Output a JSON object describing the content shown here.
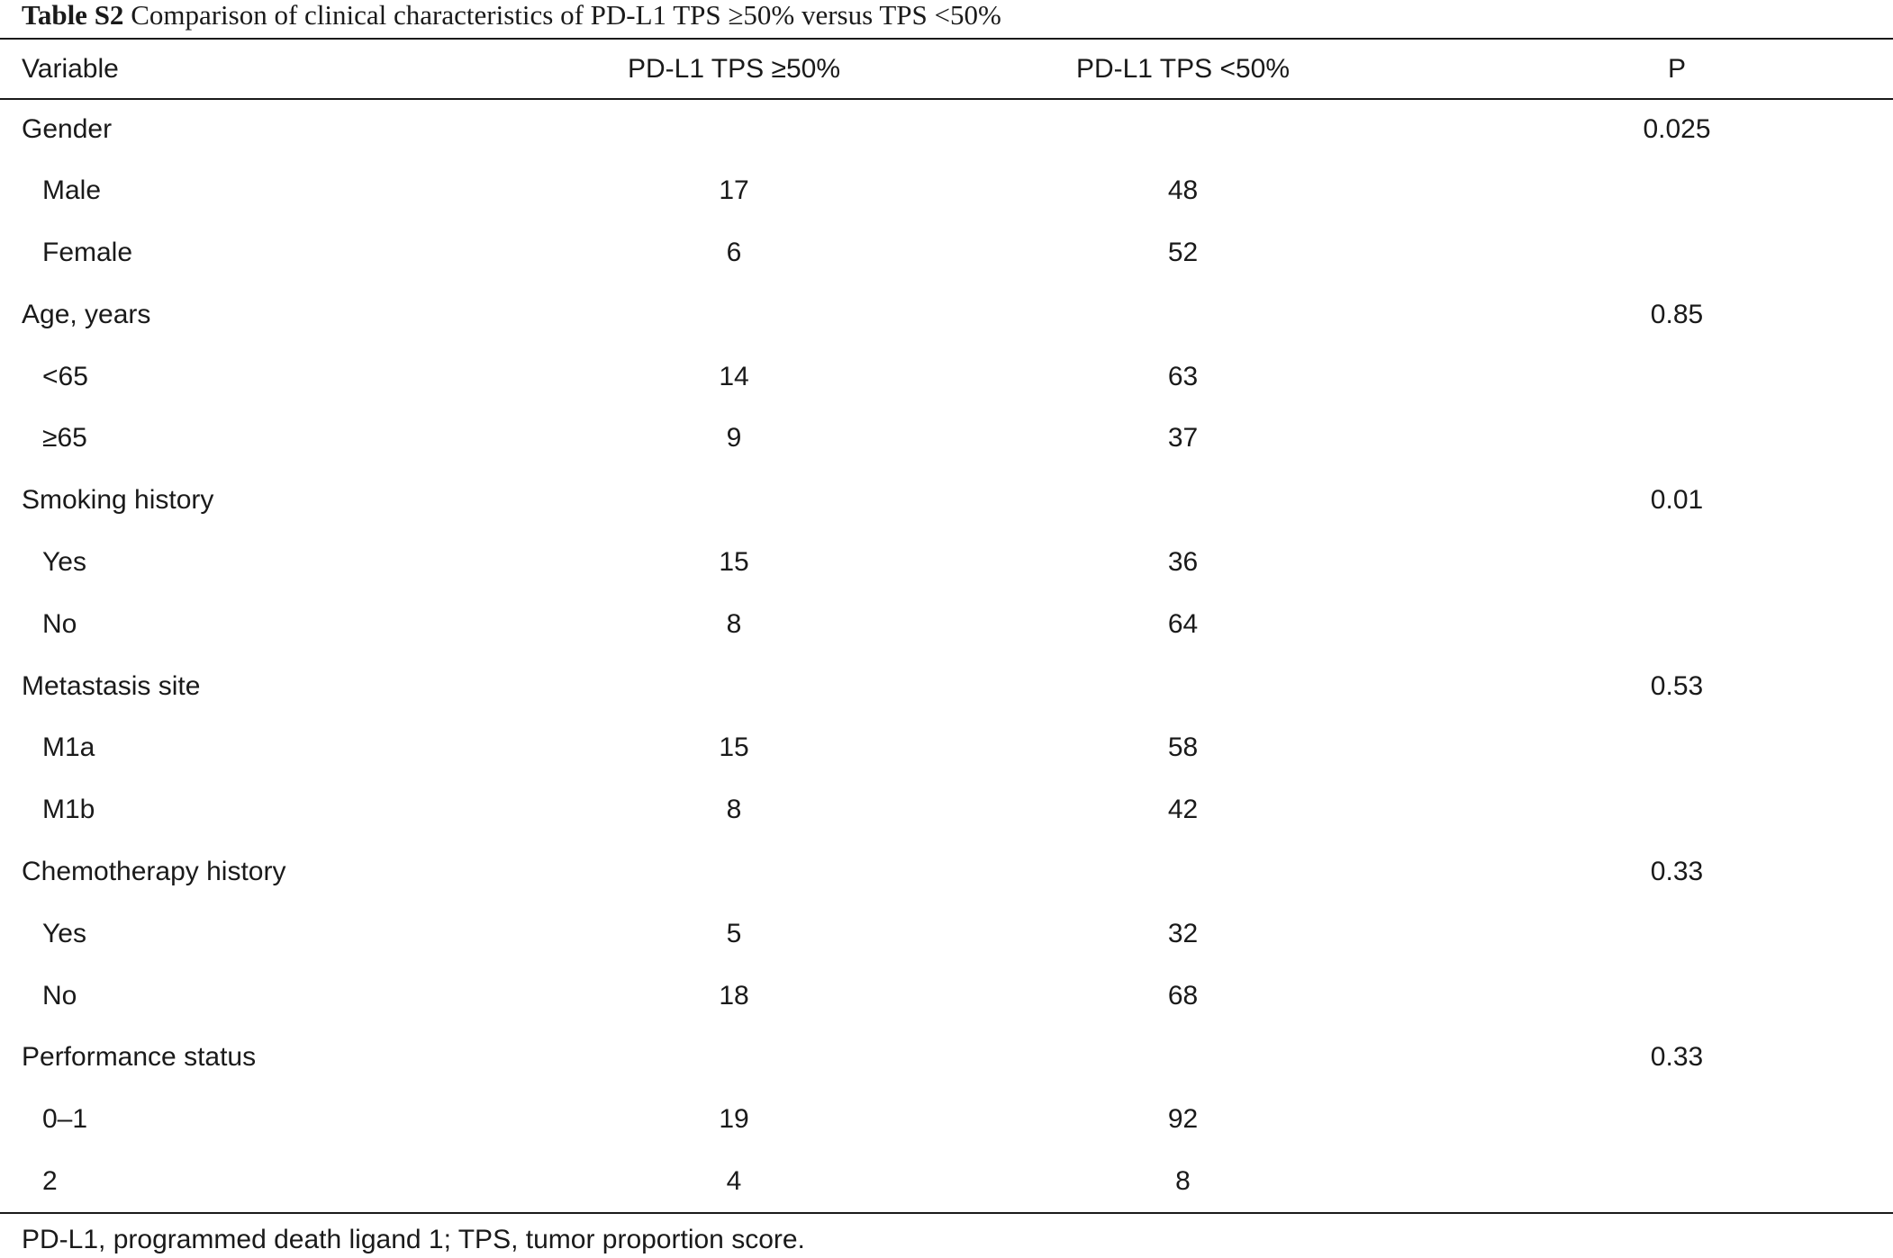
{
  "caption": {
    "label": "Table S2",
    "text": "Comparison of clinical characteristics of PD-L1 TPS ≥50% versus TPS <50%"
  },
  "columns": [
    "Variable",
    "PD-L1 TPS ≥50%",
    "PD-L1 TPS <50%",
    "P"
  ],
  "rows": [
    {
      "variable": "Gender",
      "tps_high": "",
      "tps_low": "",
      "p": "0.025",
      "sub": false
    },
    {
      "variable": "Male",
      "tps_high": "17",
      "tps_low": "48",
      "p": "",
      "sub": true
    },
    {
      "variable": "Female",
      "tps_high": "6",
      "tps_low": "52",
      "p": "",
      "sub": true
    },
    {
      "variable": "Age, years",
      "tps_high": "",
      "tps_low": "",
      "p": "0.85",
      "sub": false
    },
    {
      "variable": "<65",
      "tps_high": "14",
      "tps_low": "63",
      "p": "",
      "sub": true
    },
    {
      "variable": "≥65",
      "tps_high": "9",
      "tps_low": "37",
      "p": "",
      "sub": true
    },
    {
      "variable": "Smoking history",
      "tps_high": "",
      "tps_low": "",
      "p": "0.01",
      "sub": false
    },
    {
      "variable": "Yes",
      "tps_high": "15",
      "tps_low": "36",
      "p": "",
      "sub": true
    },
    {
      "variable": "No",
      "tps_high": "8",
      "tps_low": "64",
      "p": "",
      "sub": true
    },
    {
      "variable": "Metastasis site",
      "tps_high": "",
      "tps_low": "",
      "p": "0.53",
      "sub": false
    },
    {
      "variable": "M1a",
      "tps_high": "15",
      "tps_low": "58",
      "p": "",
      "sub": true
    },
    {
      "variable": "M1b",
      "tps_high": "8",
      "tps_low": "42",
      "p": "",
      "sub": true
    },
    {
      "variable": "Chemotherapy history",
      "tps_high": "",
      "tps_low": "",
      "p": "0.33",
      "sub": false
    },
    {
      "variable": "Yes",
      "tps_high": "5",
      "tps_low": "32",
      "p": "",
      "sub": true
    },
    {
      "variable": "No",
      "tps_high": "18",
      "tps_low": "68",
      "p": "",
      "sub": true
    },
    {
      "variable": "Performance status",
      "tps_high": "",
      "tps_low": "",
      "p": "0.33",
      "sub": false
    },
    {
      "variable": "0–1",
      "tps_high": "19",
      "tps_low": "92",
      "p": "",
      "sub": true
    },
    {
      "variable": "2",
      "tps_high": "4",
      "tps_low": "8",
      "p": "",
      "sub": true
    }
  ],
  "footnote": "PD-L1, programmed death ligand 1; TPS, tumor proportion score."
}
